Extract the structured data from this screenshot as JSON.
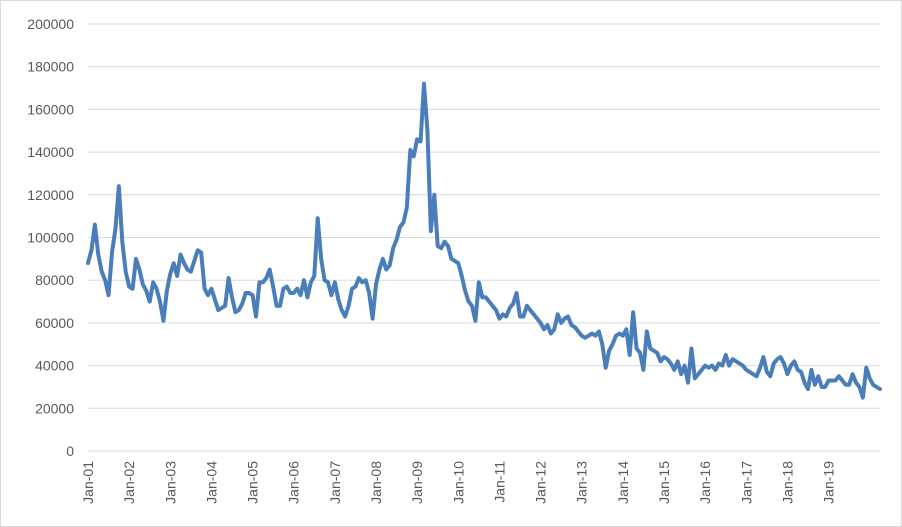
{
  "chart_data": {
    "type": "line",
    "title": "",
    "xlabel": "",
    "ylabel": "",
    "ylim": [
      0,
      200000
    ],
    "yticks": [
      0,
      20000,
      40000,
      60000,
      80000,
      100000,
      120000,
      140000,
      160000,
      180000,
      200000
    ],
    "xticks": [
      "Jan-01",
      "Jan-02",
      "Jan-03",
      "Jan-04",
      "Jan-05",
      "Jan-06",
      "Jan-07",
      "Jan-08",
      "Jan-09",
      "Jan-10",
      "Jan-11",
      "Jan-12",
      "Jan-13",
      "Jan-14",
      "Jan-15",
      "Jan-16",
      "Jan-17",
      "Jan-18",
      "Jan-19"
    ],
    "grid": true,
    "legend": "none",
    "start_month": "Jan-01",
    "series": [
      {
        "color": "#4a7ebb",
        "values": [
          88000,
          94000,
          106000,
          92000,
          84000,
          80000,
          73000,
          93000,
          104000,
          124000,
          98000,
          84000,
          77000,
          76000,
          90000,
          85000,
          78000,
          75000,
          70000,
          79000,
          76000,
          70000,
          61000,
          75000,
          83000,
          88000,
          82000,
          92000,
          88000,
          85000,
          84000,
          89000,
          94000,
          93000,
          76000,
          73000,
          76000,
          71000,
          66000,
          67000,
          68000,
          81000,
          72000,
          65000,
          66000,
          69000,
          74000,
          74000,
          73000,
          63000,
          79000,
          79000,
          81000,
          85000,
          77000,
          68000,
          68000,
          76000,
          77000,
          74000,
          74000,
          76000,
          73000,
          80000,
          72000,
          79000,
          82000,
          109000,
          90000,
          80000,
          79000,
          73000,
          79000,
          71000,
          66000,
          63000,
          68000,
          76000,
          77000,
          81000,
          79000,
          80000,
          74000,
          62000,
          78000,
          85000,
          90000,
          85000,
          87000,
          95000,
          99000,
          105000,
          107000,
          114000,
          141000,
          138000,
          146000,
          145000,
          172000,
          150000,
          103000,
          120000,
          96000,
          95000,
          98000,
          96000,
          90000,
          89000,
          88000,
          82000,
          75000,
          70000,
          68000,
          61000,
          79000,
          72000,
          72000,
          70000,
          68000,
          66000,
          62000,
          64000,
          63000,
          67000,
          69000,
          74000,
          63000,
          63000,
          68000,
          66000,
          64000,
          62000,
          60000,
          57000,
          59000,
          55000,
          57000,
          64000,
          60000,
          62000,
          63000,
          59000,
          58000,
          56000,
          54000,
          53000,
          54000,
          55000,
          54000,
          56000,
          50000,
          39000,
          47000,
          50000,
          54000,
          55000,
          54000,
          57000,
          45000,
          65000,
          48000,
          46000,
          38000,
          56000,
          48000,
          47000,
          46000,
          42000,
          44000,
          43000,
          41000,
          38000,
          42000,
          36000,
          40000,
          32000,
          48000,
          34000,
          36000,
          38000,
          40000,
          39000,
          40000,
          38000,
          41000,
          40000,
          45000,
          40000,
          43000,
          42000,
          41000,
          40000,
          38000,
          37000,
          36000,
          35000,
          39000,
          44000,
          37000,
          35000,
          41000,
          43000,
          44000,
          41000,
          36000,
          40000,
          42000,
          38000,
          37000,
          32000,
          29000,
          38000,
          31000,
          35000,
          30000,
          30000,
          33000,
          33000,
          33000,
          35000,
          33000,
          31000,
          31000,
          36000,
          32000,
          30000,
          25000,
          39000,
          34000,
          31000,
          30000,
          29000
        ]
      }
    ]
  }
}
